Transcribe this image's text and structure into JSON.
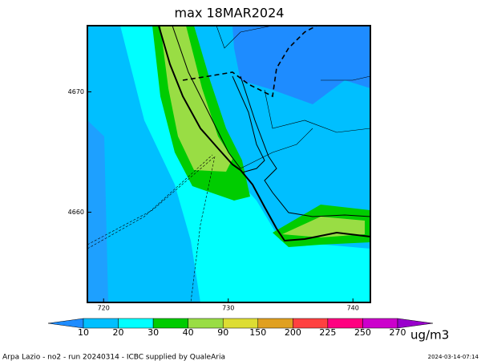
{
  "chart_data": {
    "type": "map",
    "title": "max 18MAR2024",
    "xlim": [
      718.7,
      741.4
    ],
    "xticks": [
      720,
      730,
      740
    ],
    "ylim": [
      4652.5,
      4675.5
    ],
    "yticks": [
      4660,
      4670
    ],
    "colorbar": {
      "levels": [
        10,
        20,
        30,
        40,
        90,
        150,
        200,
        225,
        250,
        270
      ],
      "colors": [
        "#1e8cff",
        "#00bfff",
        "#00ffff",
        "#00cc00",
        "#99dd44",
        "#dddd33",
        "#e0a020",
        "#ff4040",
        "#ff0080",
        "#cc00cc",
        "#9900cc"
      ],
      "unit": "ug/m3"
    },
    "footer": "Arpa Lazio - no2 - run 20240314 - ICBC supplied by QualeAria",
    "timestamp": "2024-03-14-07:14"
  }
}
